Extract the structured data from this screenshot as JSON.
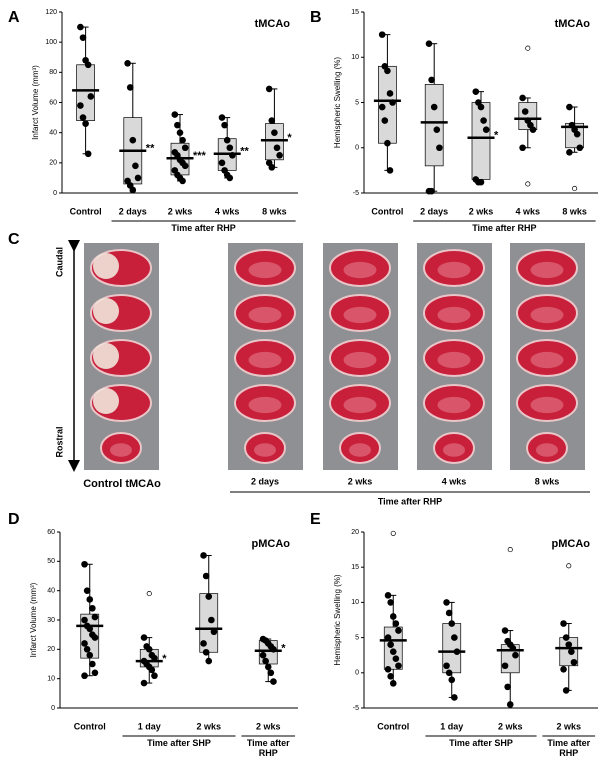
{
  "panel_c": {
    "label": "C",
    "top_label": "Caudal",
    "bottom_label": "Rostral",
    "control_label": "Control tMCAo",
    "columns": [
      "2 days",
      "2 wks",
      "4 wks",
      "8 wks"
    ],
    "group_label": "Time after RHP"
  },
  "chart_data": [
    {
      "type": "box",
      "panel": "A",
      "title": "tMCAo",
      "y_label": "Infarct Volume (mm³)",
      "ylim": [
        0,
        120
      ],
      "yticks": [
        0,
        20,
        40,
        60,
        80,
        100,
        120
      ],
      "box_color": "#d9d9d9",
      "point_color": "#000000",
      "groups": [
        {
          "boxes": [
            {
              "category": "Control",
              "whisker_low": 26,
              "q1": 48,
              "median": 68,
              "q3": 85,
              "whisker_high": 110,
              "points": [
                110,
                103,
                88,
                85,
                64,
                58,
                50,
                46,
                26
              ],
              "outliers": []
            }
          ]
        },
        {
          "label": "Time after RHP",
          "boxes": [
            {
              "category": "2 days",
              "whisker_low": 0,
              "q1": 6,
              "median": 28,
              "q3": 50,
              "whisker_high": 86,
              "points": [
                86,
                70,
                35,
                18,
                10,
                8,
                5,
                2
              ],
              "outliers": [],
              "significance": "**"
            },
            {
              "category": "2 wks",
              "whisker_low": 8,
              "q1": 12,
              "median": 23,
              "q3": 33,
              "whisker_high": 52,
              "points": [
                52,
                45,
                40,
                35,
                30,
                27,
                25,
                22,
                20,
                18,
                15,
                12,
                10,
                8
              ],
              "outliers": [],
              "significance": "***"
            },
            {
              "category": "4 wks",
              "whisker_low": 10,
              "q1": 15,
              "median": 26,
              "q3": 36,
              "whisker_high": 50,
              "points": [
                50,
                45,
                35,
                30,
                25,
                20,
                15,
                12,
                10
              ],
              "outliers": [],
              "significance": "**"
            },
            {
              "category": "8 wks",
              "whisker_low": 17,
              "q1": 22,
              "median": 35,
              "q3": 46,
              "whisker_high": 69,
              "points": [
                69,
                48,
                40,
                30,
                25,
                20,
                17
              ],
              "outliers": [],
              "significance": "*"
            }
          ]
        }
      ]
    },
    {
      "type": "box",
      "panel": "B",
      "title": "tMCAo",
      "y_label": "Hemispheric Swelling (%)",
      "ylim": [
        -5,
        15
      ],
      "yticks": [
        -5,
        0,
        5,
        10,
        15
      ],
      "box_color": "#d9d9d9",
      "point_color": "#000000",
      "groups": [
        {
          "boxes": [
            {
              "category": "Control",
              "whisker_low": -2.5,
              "q1": 0.5,
              "median": 5.2,
              "q3": 9,
              "whisker_high": 12.5,
              "points": [
                12.5,
                9,
                8.5,
                6,
                5,
                4.5,
                3,
                0.5,
                -2.5
              ],
              "outliers": []
            }
          ]
        },
        {
          "label": "Time after RHP",
          "boxes": [
            {
              "category": "2 days",
              "whisker_low": -4.8,
              "q1": -2,
              "median": 2.8,
              "q3": 7,
              "whisker_high": 11.5,
              "points": [
                11.5,
                7.5,
                4.5,
                2,
                0,
                -4.8,
                -4.8
              ],
              "outliers": []
            },
            {
              "category": "2 wks",
              "whisker_low": -3.8,
              "q1": -3.5,
              "median": 1.1,
              "q3": 5,
              "whisker_high": 6.2,
              "points": [
                6.2,
                5,
                4.5,
                3,
                2,
                -3.5,
                -3.8,
                -3.8
              ],
              "outliers": [],
              "significance": "*"
            },
            {
              "category": "4 wks",
              "whisker_low": 0,
              "q1": 2,
              "median": 3.2,
              "q3": 5,
              "whisker_high": 5.5,
              "points": [
                5.5,
                4,
                3,
                2.5,
                2,
                0
              ],
              "outliers": [
                11,
                -4
              ]
            },
            {
              "category": "8 wks",
              "whisker_low": -0.5,
              "q1": 0,
              "median": 2.3,
              "q3": 2.7,
              "whisker_high": 4.5,
              "points": [
                4.5,
                2.5,
                2,
                1.5,
                0,
                -0.5
              ],
              "outliers": [
                -4.5
              ]
            }
          ]
        }
      ]
    },
    {
      "type": "box",
      "panel": "D",
      "title": "pMCAo",
      "y_label": "Infarct Volume (mm³)",
      "ylim": [
        0,
        60
      ],
      "yticks": [
        0,
        10,
        20,
        30,
        40,
        50,
        60
      ],
      "box_color": "#d9d9d9",
      "point_color": "#000000",
      "groups": [
        {
          "boxes": [
            {
              "category": "Control",
              "whisker_low": 11,
              "q1": 17,
              "median": 28,
              "q3": 32,
              "whisker_high": 49,
              "points": [
                49,
                40,
                37,
                34,
                31,
                30,
                28,
                27,
                25,
                24,
                22,
                20,
                18,
                15,
                12,
                11
              ],
              "outliers": []
            }
          ]
        },
        {
          "label": "Time after SHP",
          "boxes": [
            {
              "category": "1 day",
              "whisker_low": 8.5,
              "q1": 14,
              "median": 16,
              "q3": 20,
              "whisker_high": 24,
              "points": [
                24,
                21,
                20,
                18,
                17,
                16,
                15,
                14,
                13,
                11,
                8.5
              ],
              "outliers": [
                39
              ],
              "significance": "*"
            },
            {
              "category": "2 wks",
              "whisker_low": 16,
              "q1": 19,
              "median": 27,
              "q3": 39,
              "whisker_high": 52,
              "points": [
                52,
                45,
                38,
                30,
                26,
                22,
                19,
                16
              ],
              "outliers": []
            }
          ]
        },
        {
          "label": "Time after RHP",
          "boxes": [
            {
              "category": "2 wks",
              "whisker_low": 9,
              "q1": 15,
              "median": 19.5,
              "q3": 23,
              "whisker_high": 23.5,
              "points": [
                23.5,
                23,
                22,
                21,
                20,
                18,
                16,
                14,
                12,
                9
              ],
              "outliers": [],
              "significance": "*"
            }
          ]
        }
      ]
    },
    {
      "type": "box",
      "panel": "E",
      "title": "pMCAo",
      "y_label": "Hemispheric Swelling (%)",
      "ylim": [
        -5,
        20
      ],
      "yticks": [
        -5,
        0,
        5,
        10,
        15,
        20
      ],
      "box_color": "#d9d9d9",
      "point_color": "#000000",
      "groups": [
        {
          "boxes": [
            {
              "category": "Control",
              "whisker_low": -1.5,
              "q1": 0.5,
              "median": 4.6,
              "q3": 6.5,
              "whisker_high": 11,
              "points": [
                11,
                10,
                8,
                7,
                6,
                5,
                4,
                3,
                2,
                1,
                0.5,
                -0.5,
                -1.5
              ],
              "outliers": [
                19.8
              ]
            }
          ]
        },
        {
          "label": "Time after SHP",
          "boxes": [
            {
              "category": "1 day",
              "whisker_low": -3.5,
              "q1": 0,
              "median": 3,
              "q3": 7,
              "whisker_high": 10,
              "points": [
                10,
                8.5,
                7,
                5,
                3,
                1,
                0,
                -1,
                -3.5
              ],
              "outliers": []
            },
            {
              "category": "2 wks",
              "whisker_low": -4.5,
              "q1": 0,
              "median": 3.2,
              "q3": 4,
              "whisker_high": 6,
              "points": [
                6,
                4.5,
                4,
                3.5,
                2.5,
                1,
                -2,
                -4.5
              ],
              "outliers": [
                17.5
              ]
            }
          ]
        },
        {
          "label": "Time after RHP",
          "boxes": [
            {
              "category": "2 wks",
              "whisker_low": -2.5,
              "q1": 1,
              "median": 3.5,
              "q3": 5,
              "whisker_high": 7,
              "points": [
                7,
                5,
                4,
                3,
                1.5,
                0.5,
                -2.5
              ],
              "outliers": [
                15.2
              ]
            }
          ]
        }
      ]
    }
  ]
}
